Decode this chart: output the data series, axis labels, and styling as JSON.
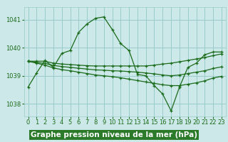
{
  "xlabel_label": "Graphe pression niveau de la mer (hPa)",
  "bg_color": "#cce8e8",
  "grid_color": "#99cccc",
  "line_color": "#1a6b1a",
  "marker_color": "#1a6b1a",
  "text_color": "#1a6b1a",
  "label_bg": "#2a7a2a",
  "yticks": [
    1038,
    1039,
    1040,
    1041
  ],
  "xticks": [
    0,
    1,
    2,
    3,
    4,
    5,
    6,
    7,
    8,
    9,
    10,
    11,
    12,
    13,
    14,
    15,
    16,
    17,
    18,
    19,
    20,
    21,
    22,
    23
  ],
  "ylim": [
    1037.55,
    1041.45
  ],
  "xlim": [
    -0.5,
    23.5
  ],
  "series": [
    [
      1038.6,
      1039.1,
      1039.55,
      1039.3,
      1039.8,
      1039.9,
      1040.55,
      1040.85,
      1041.05,
      1041.1,
      1040.65,
      1040.15,
      1039.9,
      1039.05,
      1039.0,
      1038.65,
      1038.35,
      1037.75,
      1038.6,
      1039.3,
      1039.45,
      1039.75,
      1039.85,
      1039.85
    ],
    [
      1039.52,
      1039.52,
      1039.52,
      1039.45,
      1039.42,
      1039.4,
      1039.38,
      1039.36,
      1039.35,
      1039.35,
      1039.35,
      1039.35,
      1039.35,
      1039.35,
      1039.35,
      1039.38,
      1039.42,
      1039.45,
      1039.5,
      1039.55,
      1039.6,
      1039.65,
      1039.72,
      1039.78
    ],
    [
      1039.52,
      1039.45,
      1039.38,
      1039.28,
      1039.22,
      1039.18,
      1039.13,
      1039.08,
      1039.03,
      1039.0,
      1038.97,
      1038.93,
      1038.88,
      1038.83,
      1038.78,
      1038.73,
      1038.68,
      1038.65,
      1038.65,
      1038.7,
      1038.75,
      1038.82,
      1038.92,
      1038.98
    ],
    [
      1039.52,
      1039.48,
      1039.44,
      1039.37,
      1039.33,
      1039.3,
      1039.27,
      1039.24,
      1039.21,
      1039.2,
      1039.18,
      1039.17,
      1039.15,
      1039.13,
      1039.1,
      1039.07,
      1039.03,
      1039.0,
      1039.03,
      1039.08,
      1039.13,
      1039.18,
      1039.26,
      1039.32
    ]
  ],
  "label_fontsize": 7,
  "tick_fontsize": 6,
  "xlabel_fontsize": 7.5,
  "xlabel_fontweight": "bold",
  "xlabel_bg": "#2a7a2a",
  "xlabel_fg": "#ffffff"
}
